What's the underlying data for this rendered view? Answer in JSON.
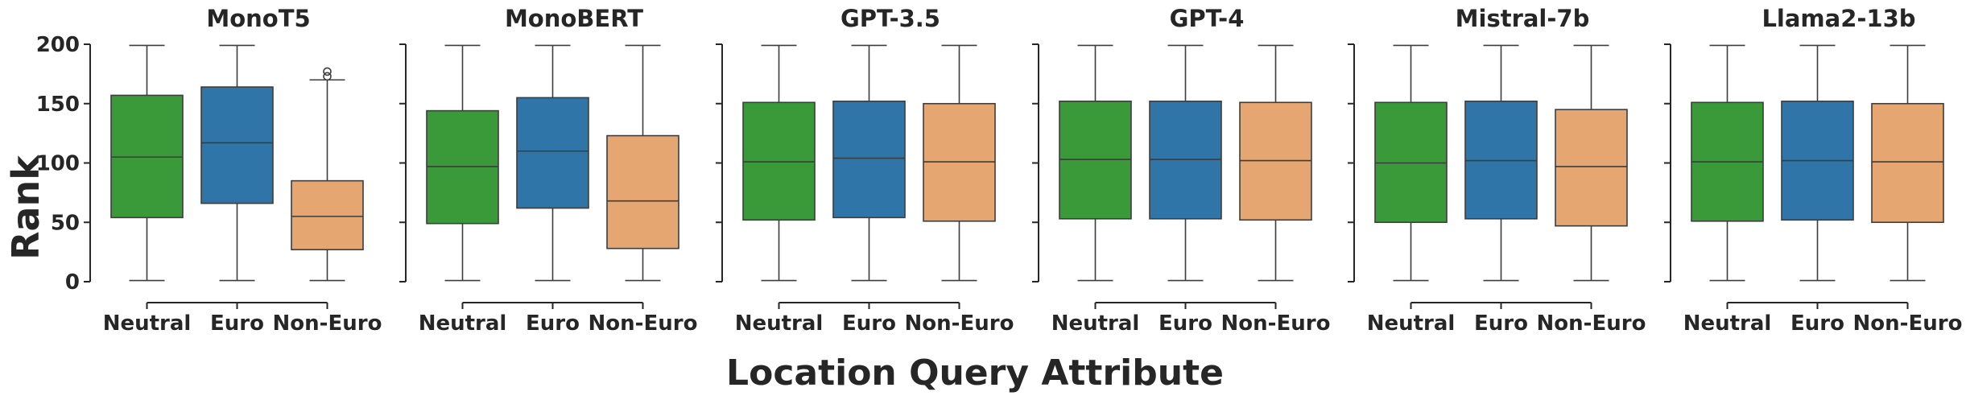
{
  "chart_data": {
    "type": "box",
    "ylabel": "Rank",
    "xlabel": "Location Query Attribute",
    "ylim": [
      0,
      200
    ],
    "yticks": [
      "0",
      "50",
      "100",
      "150",
      "200"
    ],
    "categories": [
      "Neutral",
      "Euro",
      "Non-Euro"
    ],
    "colors": {
      "Neutral": "#3a9a3a",
      "Euro": "#2f75a8",
      "Non-Euro": "#e5a671"
    },
    "panels": [
      {
        "title": "MonoT5",
        "boxes": [
          {
            "category": "Neutral",
            "q1": 54,
            "median": 105,
            "q3": 157,
            "lower": 1,
            "upper": 199,
            "fliers": []
          },
          {
            "category": "Euro",
            "q1": 66,
            "median": 117,
            "q3": 164,
            "lower": 1,
            "upper": 199,
            "fliers": []
          },
          {
            "category": "Non-Euro",
            "q1": 27,
            "median": 55,
            "q3": 85,
            "lower": 1,
            "upper": 170,
            "fliers": [
              173,
              177
            ]
          }
        ]
      },
      {
        "title": "MonoBERT",
        "boxes": [
          {
            "category": "Neutral",
            "q1": 49,
            "median": 97,
            "q3": 144,
            "lower": 1,
            "upper": 199,
            "fliers": []
          },
          {
            "category": "Euro",
            "q1": 62,
            "median": 110,
            "q3": 155,
            "lower": 1,
            "upper": 199,
            "fliers": []
          },
          {
            "category": "Non-Euro",
            "q1": 28,
            "median": 68,
            "q3": 123,
            "lower": 1,
            "upper": 199,
            "fliers": []
          }
        ]
      },
      {
        "title": "GPT-3.5",
        "boxes": [
          {
            "category": "Neutral",
            "q1": 52,
            "median": 101,
            "q3": 151,
            "lower": 1,
            "upper": 199,
            "fliers": []
          },
          {
            "category": "Euro",
            "q1": 54,
            "median": 104,
            "q3": 152,
            "lower": 1,
            "upper": 199,
            "fliers": []
          },
          {
            "category": "Non-Euro",
            "q1": 51,
            "median": 101,
            "q3": 150,
            "lower": 1,
            "upper": 199,
            "fliers": []
          }
        ]
      },
      {
        "title": "GPT-4",
        "boxes": [
          {
            "category": "Neutral",
            "q1": 53,
            "median": 103,
            "q3": 152,
            "lower": 1,
            "upper": 199,
            "fliers": []
          },
          {
            "category": "Euro",
            "q1": 53,
            "median": 103,
            "q3": 152,
            "lower": 1,
            "upper": 199,
            "fliers": []
          },
          {
            "category": "Non-Euro",
            "q1": 52,
            "median": 102,
            "q3": 151,
            "lower": 1,
            "upper": 199,
            "fliers": []
          }
        ]
      },
      {
        "title": "Mistral-7b",
        "boxes": [
          {
            "category": "Neutral",
            "q1": 50,
            "median": 100,
            "q3": 151,
            "lower": 1,
            "upper": 199,
            "fliers": []
          },
          {
            "category": "Euro",
            "q1": 53,
            "median": 102,
            "q3": 152,
            "lower": 1,
            "upper": 199,
            "fliers": []
          },
          {
            "category": "Non-Euro",
            "q1": 47,
            "median": 97,
            "q3": 145,
            "lower": 1,
            "upper": 199,
            "fliers": []
          }
        ]
      },
      {
        "title": "Llama2-13b",
        "boxes": [
          {
            "category": "Neutral",
            "q1": 51,
            "median": 101,
            "q3": 151,
            "lower": 1,
            "upper": 199,
            "fliers": []
          },
          {
            "category": "Euro",
            "q1": 52,
            "median": 102,
            "q3": 152,
            "lower": 1,
            "upper": 199,
            "fliers": []
          },
          {
            "category": "Non-Euro",
            "q1": 50,
            "median": 101,
            "q3": 150,
            "lower": 1,
            "upper": 199,
            "fliers": []
          }
        ]
      }
    ]
  }
}
